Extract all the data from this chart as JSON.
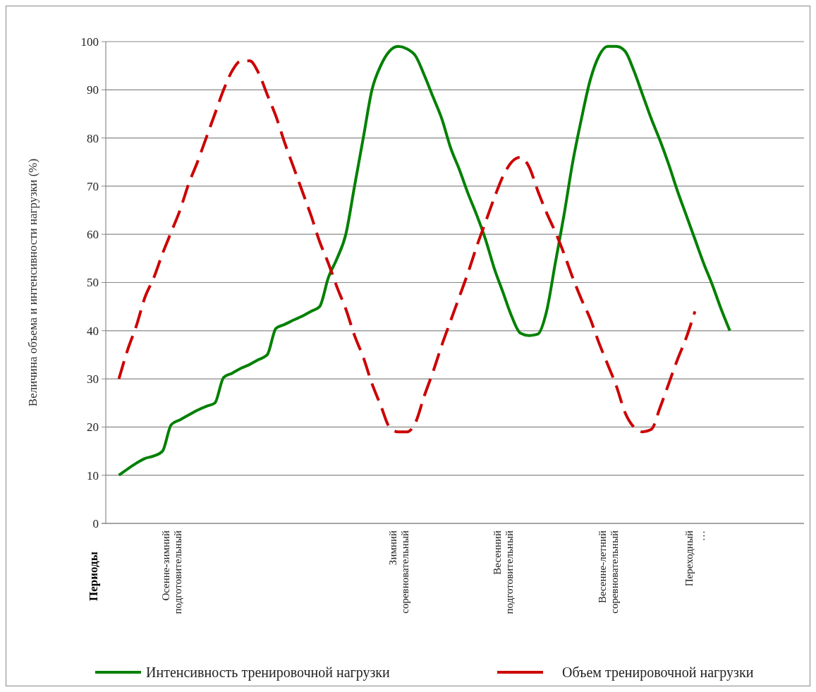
{
  "chart_data": {
    "type": "line",
    "ylabel": "Величина объема и интенсивности нагрузки (%)",
    "annotations": [
      "Периоды"
    ],
    "categories": [
      null,
      null,
      null,
      null,
      null,
      null,
      null,
      "Осенне-зимний подготовительный",
      null,
      null,
      null,
      null,
      null,
      null,
      null,
      null,
      null,
      null,
      null,
      null,
      null,
      null,
      null,
      null,
      null,
      null,
      null,
      null,
      null,
      null,
      null,
      null,
      null,
      "Зимний соревновательный",
      null,
      null,
      null,
      null,
      null,
      null,
      null,
      null,
      null,
      null,
      null,
      "Весенний подготовительный",
      null,
      null,
      null,
      null,
      null,
      null,
      null,
      null,
      null,
      null,
      null,
      "Весенне-летний соревновательный",
      null,
      null,
      null,
      null,
      null,
      null,
      null,
      null,
      null,
      "Переходный …",
      null,
      null,
      null,
      null,
      null,
      null,
      null,
      null,
      null,
      null,
      null,
      null
    ],
    "series": [
      {
        "name": "Интенсивность тренировочной нагрузки",
        "color": "#008000",
        "line_style": "solid",
        "values": [
          null,
          10,
          11.3,
          12.5,
          13.5,
          14,
          15,
          20.5,
          21.5,
          22.5,
          23.5,
          24.3,
          25,
          30.3,
          31.2,
          32.2,
          33,
          34,
          35,
          40.5,
          41.3,
          42.2,
          43,
          44,
          45,
          51,
          55,
          60,
          70,
          80,
          90,
          95,
          98,
          99,
          98.5,
          97,
          93,
          88.5,
          84,
          78,
          73.5,
          68.5,
          64,
          59,
          53,
          48,
          43,
          39.5,
          39,
          39.3,
          44,
          54,
          64,
          75,
          84,
          92,
          97,
          99,
          99,
          98,
          94,
          89,
          84,
          79.5,
          74.5,
          69,
          64,
          59,
          54,
          49.5,
          44.5,
          40,
          null,
          null,
          null,
          null,
          null,
          null,
          null,
          null
        ]
      },
      {
        "name": "Объем тренировочной нагрузки",
        "color": "#cc0000",
        "line_style": "dashed",
        "values": [
          null,
          30,
          36,
          41,
          47,
          51,
          56,
          60.5,
          65,
          70.5,
          75,
          80,
          85,
          90,
          94,
          96,
          96,
          93.5,
          89,
          84.5,
          79,
          74,
          69,
          64,
          58.5,
          54,
          49,
          44.5,
          39,
          34.5,
          29,
          24.5,
          20,
          19,
          19,
          21,
          26.5,
          31.5,
          37,
          42,
          47,
          52,
          57.5,
          62.5,
          67.5,
          72,
          75,
          76,
          74,
          69,
          64.5,
          60.5,
          56,
          51,
          46.5,
          42.5,
          37.5,
          33,
          28.5,
          23,
          20,
          19,
          19.5,
          24,
          29,
          34,
          38.5,
          44,
          null,
          null,
          null,
          null,
          null,
          null,
          null,
          null,
          null,
          null,
          null,
          null
        ]
      }
    ],
    "ylim": [
      0,
      100
    ],
    "yticks": [
      0,
      10,
      20,
      30,
      40,
      50,
      60,
      70,
      80,
      90,
      100
    ],
    "grid": "y",
    "legend": "bottom",
    "marker": "none"
  }
}
